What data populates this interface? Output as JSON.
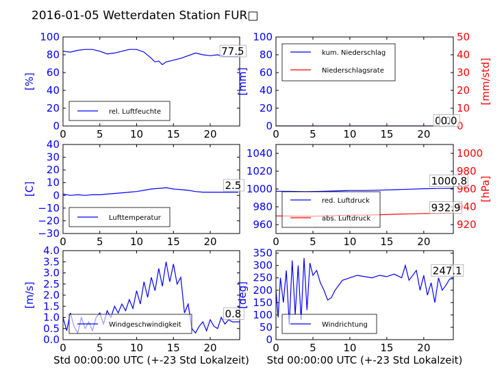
{
  "title": "2016-01-05 Wetterdaten Station FUR□",
  "colors": {
    "blue": "#0000ff",
    "red": "#ff0000",
    "black": "#000000"
  },
  "chart_data": [
    {
      "id": "humidity",
      "type": "line",
      "ylabel": "[%]",
      "xlabel": "",
      "xlim": [
        0,
        24
      ],
      "ylim": [
        0,
        100
      ],
      "xticks": [
        "0",
        "5",
        "10",
        "15",
        "20"
      ],
      "yticks": [
        "0",
        "20",
        "40",
        "60",
        "80",
        "100"
      ],
      "legend": "lower-left",
      "series": [
        {
          "name": "rel. Luftfeuchte",
          "axis": "left",
          "color": "#0000ff",
          "x": [
            0,
            1,
            2,
            3,
            4,
            5,
            6,
            7,
            8,
            9,
            10,
            11,
            12,
            12.5,
            13,
            13.5,
            14,
            15,
            16,
            17,
            18,
            19,
            20,
            21,
            22,
            23,
            23.8
          ],
          "y": [
            84,
            83,
            85,
            86,
            86,
            84,
            81,
            82,
            84,
            86,
            86,
            83,
            76,
            72,
            73,
            69,
            72,
            74,
            76,
            79,
            82,
            80,
            79,
            80,
            78,
            78,
            78
          ]
        }
      ],
      "annotations": [
        {
          "text": "77.5",
          "x": 21.5,
          "y": 80
        }
      ]
    },
    {
      "id": "precipitation",
      "type": "line",
      "ylabel": "[mm]",
      "y2label": "[mm/std]",
      "xlabel": "",
      "xlim": [
        0,
        24
      ],
      "ylim": [
        0,
        100
      ],
      "y2lim": [
        0,
        50
      ],
      "xticks": [
        "0",
        "5",
        "10",
        "15",
        "20"
      ],
      "yticks": [
        "0",
        "20",
        "40",
        "60",
        "80",
        "100"
      ],
      "y2ticks": [
        "0",
        "10",
        "20",
        "30",
        "40",
        "50"
      ],
      "legend": "upper-left",
      "series": [
        {
          "name": "kum. Niederschlag",
          "axis": "left",
          "color": "#0000ff",
          "x": [
            0,
            24
          ],
          "y": [
            0,
            0
          ]
        },
        {
          "name": "Niederschlagsrate",
          "axis": "right",
          "color": "#ff0000",
          "x": [
            0,
            24
          ],
          "y": [
            0,
            0
          ]
        }
      ],
      "annotations": [
        {
          "text": "0.0",
          "x": 21.5,
          "y": 2
        },
        {
          "text": "0.0",
          "x": 22.3,
          "y": 2
        }
      ]
    },
    {
      "id": "temperature",
      "type": "line",
      "ylabel": "[C]",
      "xlabel": "",
      "xlim": [
        0,
        24
      ],
      "ylim": [
        -30,
        40
      ],
      "xticks": [
        "0",
        "5",
        "10",
        "15",
        "20"
      ],
      "yticks": [
        "−30",
        "−20",
        "−10",
        "0",
        "10",
        "20",
        "30",
        "40"
      ],
      "legend": "lower-left",
      "series": [
        {
          "name": "Lufttemperatur",
          "axis": "left",
          "color": "#0000ff",
          "x": [
            0,
            1,
            2,
            3,
            4,
            5,
            6,
            7,
            8,
            9,
            10,
            11,
            12,
            13,
            14,
            15,
            16,
            17,
            18,
            19,
            20,
            21,
            22,
            23,
            23.8
          ],
          "y": [
            1,
            0,
            0.5,
            0,
            0.5,
            0.5,
            1,
            1.5,
            2,
            2.5,
            3,
            4,
            5,
            5.5,
            6,
            5,
            4.5,
            4,
            3,
            2.5,
            2.5,
            2.5,
            2.5,
            2.5,
            2.5
          ]
        }
      ],
      "annotations": [
        {
          "text": "2.5",
          "x": 22,
          "y": 5
        }
      ]
    },
    {
      "id": "pressure",
      "type": "line",
      "ylabel": "",
      "y2label": "[hPa]",
      "xlabel": "",
      "xlim": [
        0,
        24
      ],
      "ylim": [
        950,
        1050
      ],
      "y2lim": [
        910,
        1010
      ],
      "xticks": [
        "0",
        "5",
        "10",
        "15",
        "20"
      ],
      "yticks": [
        "960",
        "980",
        "1000",
        "1020",
        "1040"
      ],
      "y2ticks": [
        "920",
        "940",
        "960",
        "980",
        "1000"
      ],
      "legend": "lower-left",
      "series": [
        {
          "name": "red. Luftdruck",
          "axis": "left",
          "color": "#0000ff",
          "x": [
            0,
            2,
            4,
            6,
            8,
            10,
            12,
            14,
            16,
            18,
            20,
            22,
            24
          ],
          "y": [
            997.5,
            997.3,
            997,
            997.3,
            997.8,
            998.3,
            998.3,
            998.7,
            999.2,
            999.8,
            1000.3,
            1000.6,
            1000.8
          ]
        },
        {
          "name": "abs. Luftdruck",
          "axis": "right",
          "color": "#ff0000",
          "x": [
            0,
            2,
            4,
            6,
            8,
            10,
            12,
            14,
            16,
            18,
            20,
            22,
            24
          ],
          "y": [
            929.8,
            929.6,
            929.3,
            929.6,
            930.1,
            930.6,
            930.7,
            931.1,
            931.6,
            932.1,
            932.5,
            932.7,
            932.9
          ]
        }
      ],
      "annotations": [
        {
          "text": "1000.8",
          "x": 21,
          "y": 1005
        },
        {
          "text": "932.9",
          "x": 21,
          "y": 975
        }
      ]
    },
    {
      "id": "wind-speed",
      "type": "line",
      "ylabel": "[m/s]",
      "xlabel": "Std 00:00:00 UTC (+-23 Std Lokalzeit)",
      "xlim": [
        0,
        24
      ],
      "ylim": [
        0,
        4
      ],
      "xticks": [
        "0",
        "5",
        "10",
        "15",
        "20"
      ],
      "yticks": [
        "0.0",
        "0.5",
        "1.0",
        "1.5",
        "2.0",
        "2.5",
        "3.0",
        "3.5",
        "4.0"
      ],
      "legend": "lower-left",
      "series": [
        {
          "name": "Windgeschwindigkeit",
          "axis": "left",
          "color": "#0000ff",
          "x": [
            0,
            0.5,
            1,
            1.5,
            2,
            2.5,
            3,
            3.5,
            4,
            4.5,
            5,
            5.5,
            6,
            6.5,
            7,
            7.5,
            8,
            8.5,
            9,
            9.5,
            10,
            10.5,
            11,
            11.5,
            12,
            12.5,
            13,
            13.5,
            14,
            14.5,
            15,
            15.5,
            16,
            16.5,
            17,
            17.5,
            18,
            18.5,
            19,
            19.5,
            20,
            20.5,
            21,
            21.5,
            22,
            22.5,
            23,
            23.5,
            24
          ],
          "y": [
            1.0,
            0.4,
            1.2,
            0.6,
            0.3,
            1.0,
            0.5,
            0.8,
            0.4,
            1.0,
            1.2,
            0.7,
            1.3,
            1.0,
            1.5,
            1.2,
            1.6,
            1.3,
            1.8,
            1.4,
            2.2,
            1.6,
            2.6,
            1.9,
            2.8,
            2.2,
            3.2,
            2.4,
            3.5,
            2.6,
            3.4,
            2.5,
            2.8,
            1.2,
            1.6,
            0.5,
            0.3,
            0.6,
            0.8,
            0.4,
            0.9,
            0.6,
            0.5,
            1.0,
            0.7,
            0.9,
            0.8,
            0.8,
            0.8
          ]
        }
      ],
      "annotations": [
        {
          "text": "0.8",
          "x": 22,
          "y": 1.0
        }
      ]
    },
    {
      "id": "wind-direction",
      "type": "line",
      "ylabel": "[deg]",
      "xlabel": "Std 00:00:00 UTC (+-23 Std Lokalzeit)",
      "xlim": [
        0,
        24
      ],
      "ylim": [
        0,
        360
      ],
      "xticks": [
        "0",
        "5",
        "10",
        "15",
        "20"
      ],
      "yticks": [
        "0",
        "50",
        "100",
        "150",
        "200",
        "250",
        "300",
        "350"
      ],
      "legend": "lower-left",
      "series": [
        {
          "name": "Windrichtung",
          "axis": "left",
          "color": "#0000ff",
          "x": [
            0,
            0.3,
            0.6,
            1,
            1.4,
            1.8,
            2.2,
            2.6,
            3,
            3.4,
            3.8,
            4.2,
            4.6,
            5,
            5.5,
            6,
            6.5,
            7,
            7.5,
            8,
            9,
            10,
            11,
            12,
            13,
            14,
            15,
            16,
            17,
            17.5,
            18,
            19,
            19.5,
            20,
            20.5,
            21,
            21.5,
            22,
            22.5,
            23,
            23.5,
            24
          ],
          "y": [
            200,
            90,
            250,
            150,
            280,
            60,
            320,
            100,
            300,
            80,
            330,
            120,
            310,
            260,
            280,
            230,
            200,
            160,
            170,
            200,
            240,
            250,
            260,
            255,
            250,
            260,
            255,
            265,
            250,
            300,
            240,
            280,
            200,
            260,
            180,
            230,
            150,
            250,
            200,
            220,
            245,
            247
          ]
        }
      ],
      "annotations": [
        {
          "text": "247.1",
          "x": 21.2,
          "y": 265
        }
      ]
    }
  ]
}
